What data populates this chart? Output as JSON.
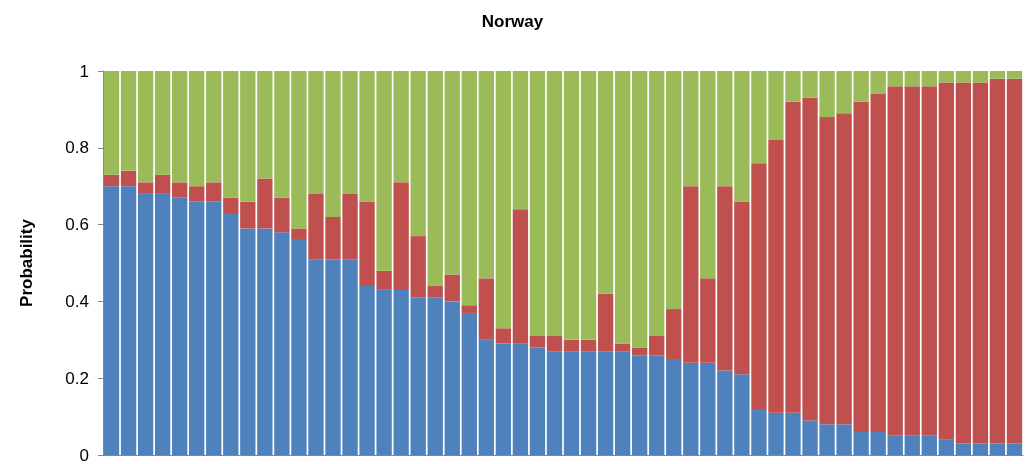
{
  "chart_data": {
    "type": "bar",
    "title": "Norway",
    "ylabel": "Probability",
    "stacked": true,
    "categories": [
      null,
      null,
      null,
      null,
      null,
      null,
      null,
      null,
      null,
      null,
      null,
      null,
      null,
      null,
      null,
      null,
      null,
      null,
      null,
      null,
      null,
      null,
      null,
      null,
      null,
      null,
      null,
      null,
      null,
      null,
      null,
      null,
      null,
      null,
      null,
      null,
      null,
      null,
      null,
      null,
      null,
      null,
      null,
      null,
      null,
      null,
      null,
      null,
      null,
      null,
      null,
      null,
      null,
      null
    ],
    "series": [
      {
        "color": "#4f81bd",
        "values": [
          0.7,
          0.7,
          0.68,
          0.68,
          0.67,
          0.66,
          0.66,
          0.63,
          0.59,
          0.59,
          0.58,
          0.56,
          0.51,
          0.51,
          0.51,
          0.44,
          0.43,
          0.43,
          0.41,
          0.41,
          0.4,
          0.37,
          0.3,
          0.29,
          0.29,
          0.28,
          0.27,
          0.27,
          0.27,
          0.27,
          0.27,
          0.26,
          0.26,
          0.25,
          0.24,
          0.24,
          0.22,
          0.21,
          0.12,
          0.11,
          0.11,
          0.09,
          0.08,
          0.08,
          0.06,
          0.06,
          0.05,
          0.05,
          0.05,
          0.04,
          0.03,
          0.03,
          0.03,
          0.03
        ]
      },
      {
        "color": "#c0504d",
        "values": [
          0.03,
          0.04,
          0.03,
          0.05,
          0.04,
          0.04,
          0.05,
          0.04,
          0.07,
          0.13,
          0.09,
          0.03,
          0.17,
          0.11,
          0.17,
          0.22,
          0.05,
          0.28,
          0.16,
          0.03,
          0.07,
          0.02,
          0.16,
          0.04,
          0.35,
          0.03,
          0.04,
          0.03,
          0.03,
          0.15,
          0.02,
          0.02,
          0.05,
          0.13,
          0.46,
          0.22,
          0.48,
          0.45,
          0.64,
          0.71,
          0.81,
          0.84,
          0.8,
          0.81,
          0.86,
          0.88,
          0.91,
          0.91,
          0.91,
          0.93,
          0.94,
          0.94,
          0.95,
          0.95
        ]
      },
      {
        "color": "#9bbb59",
        "values": [
          0.27,
          0.26,
          0.29,
          0.27,
          0.29,
          0.3,
          0.29,
          0.33,
          0.34,
          0.28,
          0.33,
          0.41,
          0.32,
          0.38,
          0.32,
          0.34,
          0.52,
          0.29,
          0.43,
          0.56,
          0.53,
          0.61,
          0.54,
          0.67,
          0.36,
          0.69,
          0.69,
          0.7,
          0.7,
          0.58,
          0.71,
          0.72,
          0.69,
          0.62,
          0.3,
          0.54,
          0.3,
          0.34,
          0.24,
          0.18,
          0.08,
          0.07,
          0.12,
          0.11,
          0.08,
          0.06,
          0.04,
          0.04,
          0.04,
          0.03,
          0.03,
          0.03,
          0.02,
          0.02
        ]
      }
    ],
    "ylim": [
      0,
      1
    ],
    "yticks": [
      0,
      0.2,
      0.4,
      0.6,
      0.8,
      1
    ],
    "grid": false
  }
}
